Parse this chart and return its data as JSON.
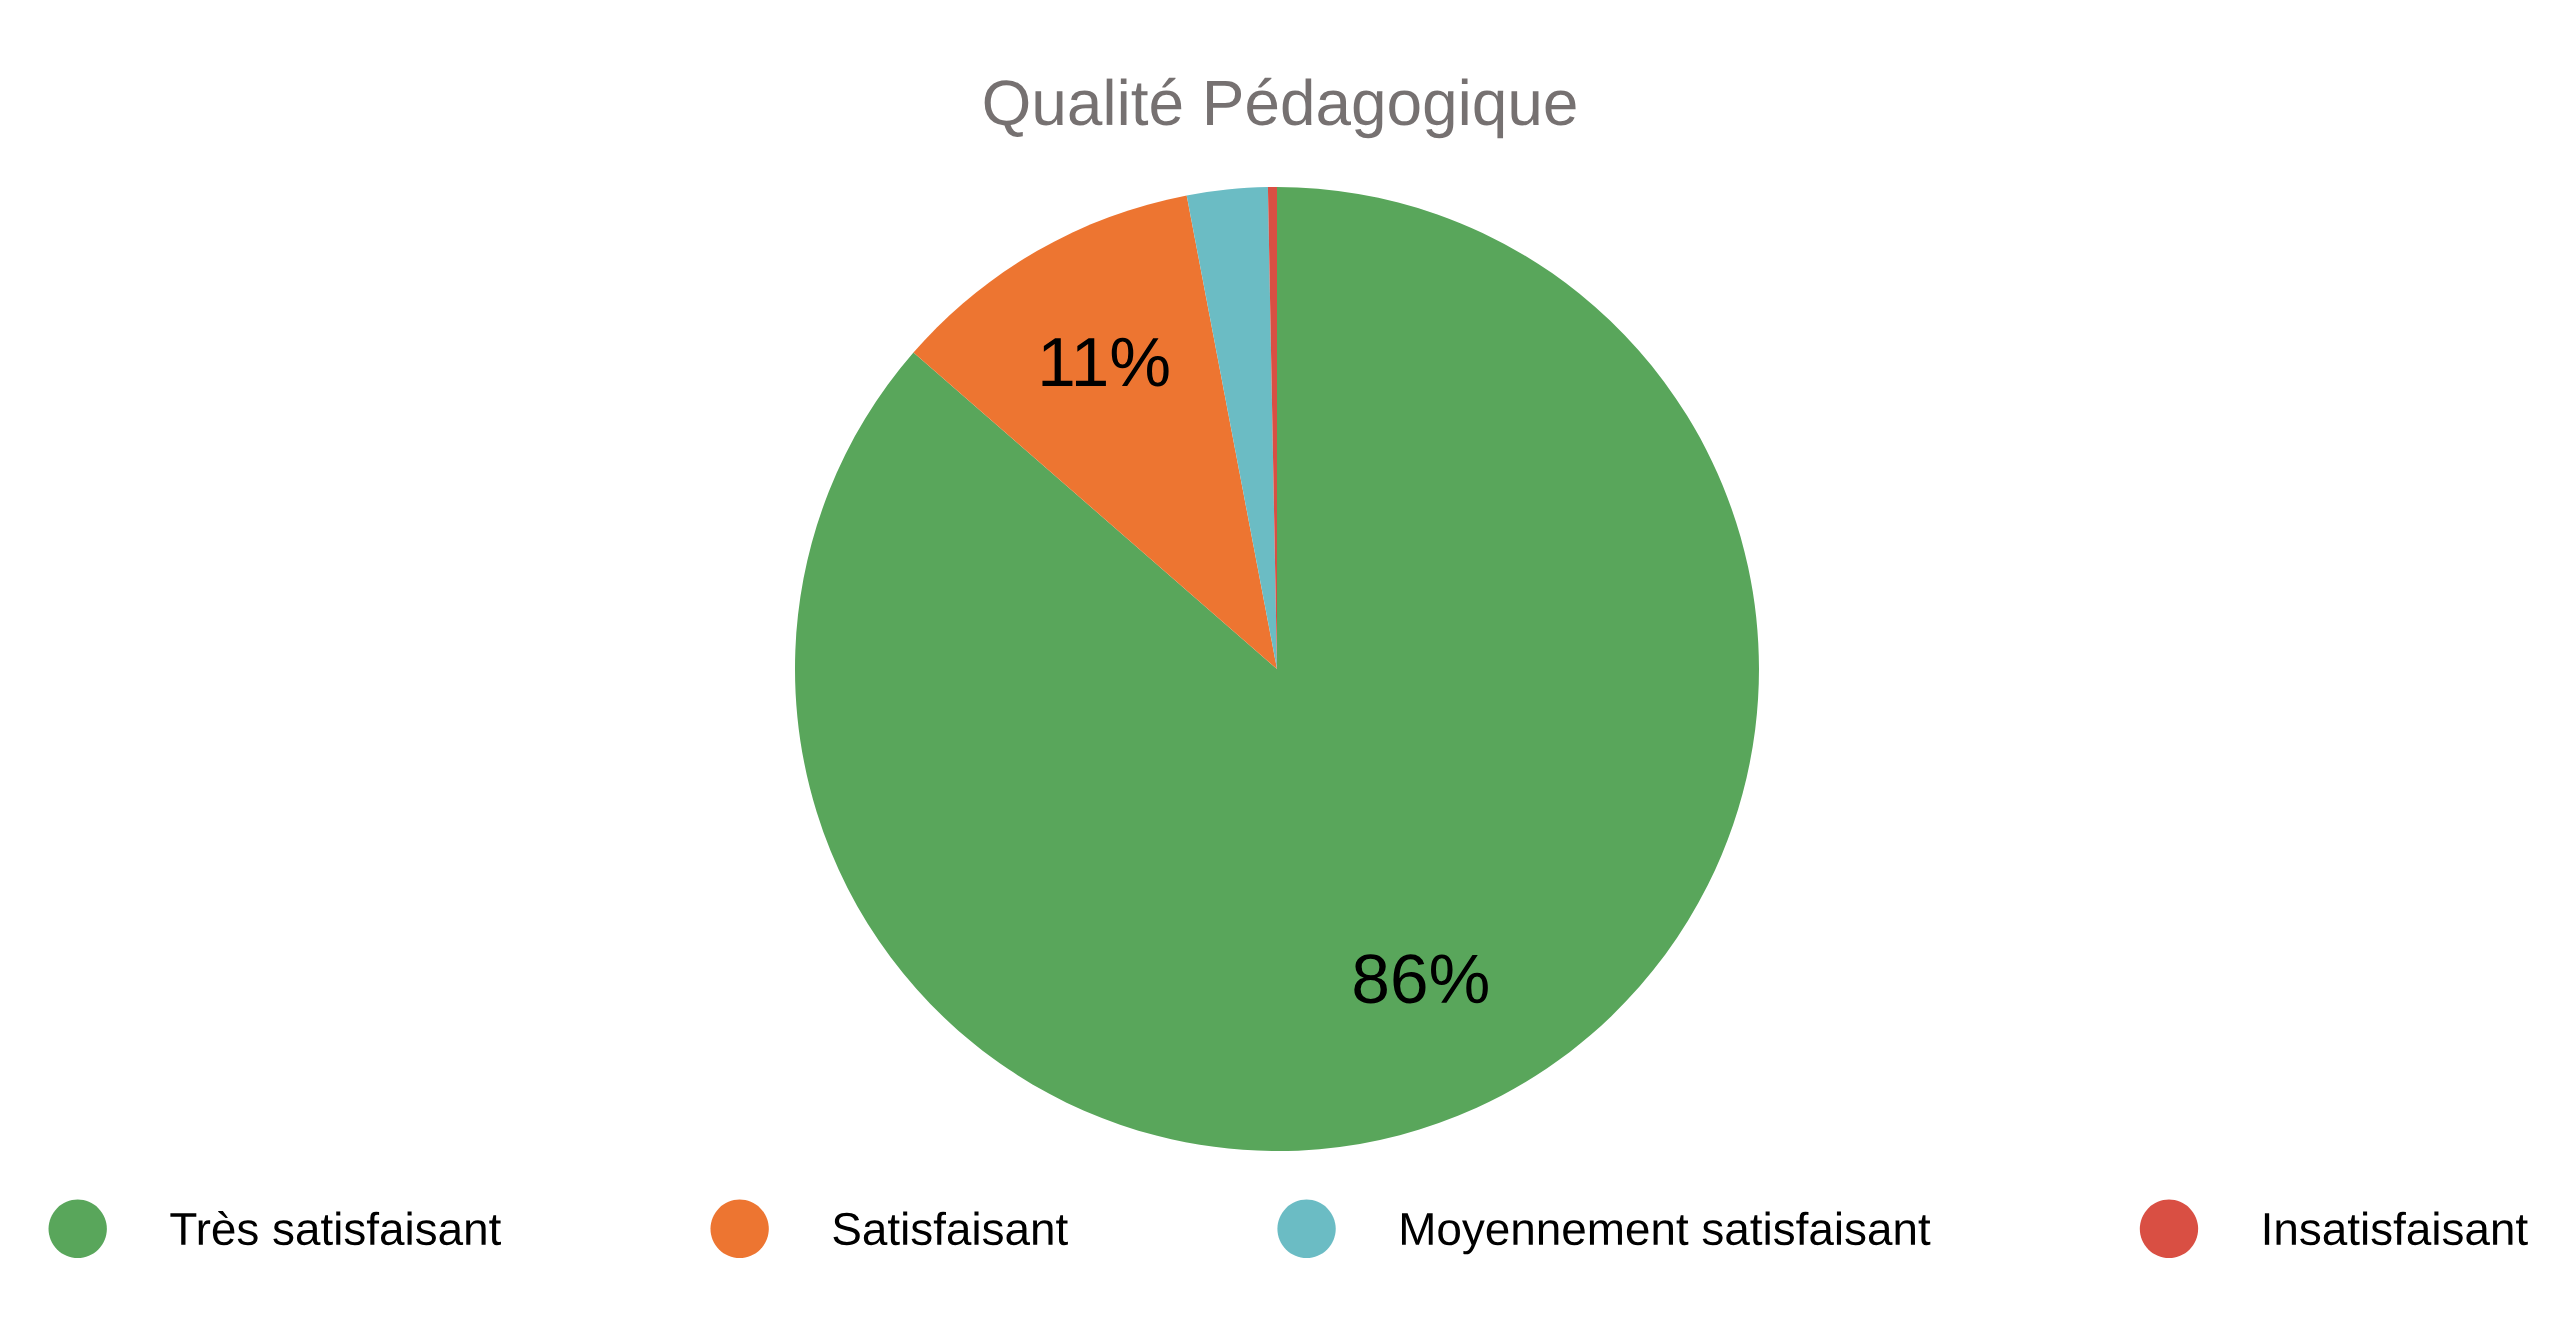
{
  "chart_data": {
    "type": "pie",
    "title": "Qualité Pédagogique",
    "categories": [
      "Très satisfaisant",
      "Satisfaisant",
      "Moyennement satisfaisant",
      "Insatisfaisant"
    ],
    "values": [
      86.4,
      10.6,
      2.7,
      0.3
    ],
    "colors": [
      "#59a65b",
      "#ed7531",
      "#6bbcc4",
      "#d94f43"
    ],
    "value_labels": [
      "86%",
      "11%",
      null,
      null
    ],
    "legend": "bottom"
  }
}
